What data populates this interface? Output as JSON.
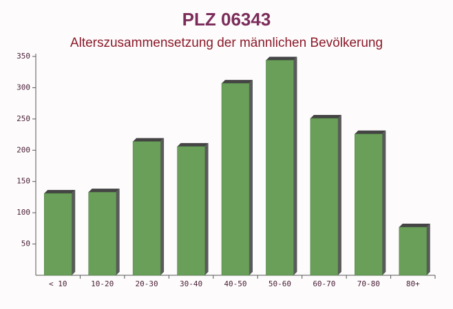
{
  "chart_data": {
    "type": "bar",
    "title": "PLZ 06343",
    "subtitle": "Alterszusammensetzung der männlichen Bevölkerung",
    "categories": [
      "< 10",
      "10-20",
      "20-30",
      "30-40",
      "40-50",
      "50-60",
      "60-70",
      "70-80",
      "80+"
    ],
    "values": [
      131,
      133,
      214,
      206,
      307,
      344,
      251,
      226,
      77
    ],
    "color": "#6a9f5a",
    "ylim": [
      0,
      350
    ],
    "yticks": [
      50,
      100,
      150,
      200,
      250,
      300,
      350
    ],
    "grid": false
  }
}
